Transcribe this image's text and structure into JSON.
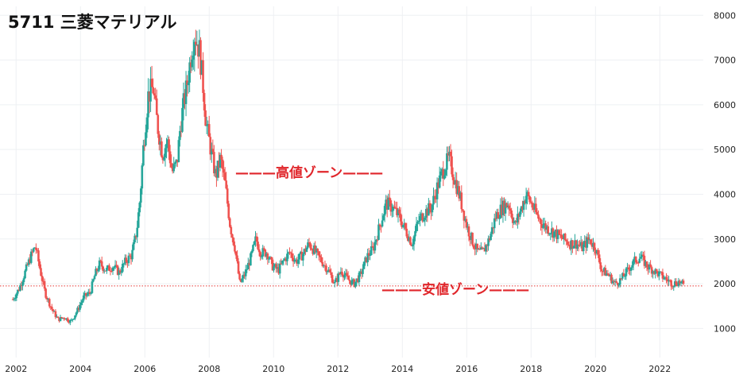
{
  "title": "5711 三菱マテリアル",
  "annotations": {
    "high_zone": "———高値ゾーン———",
    "low_zone": "———安値ゾーン———"
  },
  "colors": {
    "up": "#26a69a",
    "down": "#ef5350",
    "grid": "#eef0f3",
    "reference_line": "#e53935",
    "annotation": "#e0262b"
  },
  "chart_data": {
    "type": "candlestick",
    "title": "5711 三菱マテリアル",
    "xlabel": "",
    "ylabel": "",
    "x_range": [
      2001.5,
      2023.35
    ],
    "ylim": [
      350,
      8200
    ],
    "x_ticks": [
      2002,
      2004,
      2006,
      2008,
      2010,
      2012,
      2014,
      2016,
      2018,
      2020,
      2022
    ],
    "x_tick_labels": [
      "2002",
      "2004",
      "2006",
      "2008",
      "2010",
      "2012",
      "2014",
      "2016",
      "2018",
      "2020",
      "2022"
    ],
    "y_ticks": [
      1000,
      2000,
      3000,
      4000,
      5000,
      6000,
      7000,
      8000
    ],
    "y_tick_labels": [
      "1000",
      "2000",
      "3000",
      "4000",
      "5000",
      "6000",
      "7000",
      "8000"
    ],
    "grid": true,
    "reference_line": 1950,
    "price_path": [
      [
        2001.9,
        1650
      ],
      [
        2002.1,
        1900
      ],
      [
        2002.3,
        2300
      ],
      [
        2002.45,
        2600
      ],
      [
        2002.6,
        2850
      ],
      [
        2002.75,
        2300
      ],
      [
        2002.9,
        1800
      ],
      [
        2003.1,
        1450
      ],
      [
        2003.3,
        1200
      ],
      [
        2003.5,
        1250
      ],
      [
        2003.7,
        1150
      ],
      [
        2003.9,
        1400
      ],
      [
        2004.1,
        1700
      ],
      [
        2004.3,
        1800
      ],
      [
        2004.45,
        2200
      ],
      [
        2004.6,
        2450
      ],
      [
        2004.8,
        2300
      ],
      [
        2005.0,
        2400
      ],
      [
        2005.2,
        2250
      ],
      [
        2005.4,
        2500
      ],
      [
        2005.6,
        2650
      ],
      [
        2005.75,
        3200
      ],
      [
        2005.85,
        3900
      ],
      [
        2005.95,
        5000
      ],
      [
        2006.1,
        6200
      ],
      [
        2006.25,
        6400
      ],
      [
        2006.4,
        5500
      ],
      [
        2006.55,
        4900
      ],
      [
        2006.7,
        5200
      ],
      [
        2006.85,
        4500
      ],
      [
        2007.0,
        4700
      ],
      [
        2007.1,
        5500
      ],
      [
        2007.2,
        6000
      ],
      [
        2007.3,
        6400
      ],
      [
        2007.45,
        7200
      ],
      [
        2007.55,
        7600
      ],
      [
        2007.7,
        7200
      ],
      [
        2007.8,
        6500
      ],
      [
        2007.9,
        5600
      ],
      [
        2008.05,
        5000
      ],
      [
        2008.2,
        4400
      ],
      [
        2008.35,
        4800
      ],
      [
        2008.5,
        4200
      ],
      [
        2008.65,
        3300
      ],
      [
        2008.8,
        2800
      ],
      [
        2008.95,
        2000
      ],
      [
        2009.1,
        2200
      ],
      [
        2009.3,
        2600
      ],
      [
        2009.45,
        3000
      ],
      [
        2009.6,
        2700
      ],
      [
        2009.8,
        2700
      ],
      [
        2009.95,
        2400
      ],
      [
        2010.15,
        2300
      ],
      [
        2010.3,
        2500
      ],
      [
        2010.5,
        2700
      ],
      [
        2010.7,
        2500
      ],
      [
        2010.9,
        2650
      ],
      [
        2011.1,
        2900
      ],
      [
        2011.3,
        2700
      ],
      [
        2011.5,
        2500
      ],
      [
        2011.7,
        2300
      ],
      [
        2011.9,
        2000
      ],
      [
        2012.1,
        2300
      ],
      [
        2012.3,
        2100
      ],
      [
        2012.5,
        2000
      ],
      [
        2012.7,
        2200
      ],
      [
        2012.9,
        2600
      ],
      [
        2013.1,
        2800
      ],
      [
        2013.3,
        3300
      ],
      [
        2013.5,
        3800
      ],
      [
        2013.7,
        3700
      ],
      [
        2013.9,
        3500
      ],
      [
        2014.1,
        3200
      ],
      [
        2014.3,
        2900
      ],
      [
        2014.5,
        3400
      ],
      [
        2014.7,
        3600
      ],
      [
        2014.9,
        3700
      ],
      [
        2015.1,
        4200
      ],
      [
        2015.3,
        4600
      ],
      [
        2015.45,
        4800
      ],
      [
        2015.6,
        4400
      ],
      [
        2015.8,
        3900
      ],
      [
        2016.0,
        3300
      ],
      [
        2016.2,
        2900
      ],
      [
        2016.35,
        2700
      ],
      [
        2016.5,
        2700
      ],
      [
        2016.7,
        3000
      ],
      [
        2016.9,
        3500
      ],
      [
        2017.1,
        3700
      ],
      [
        2017.3,
        3800
      ],
      [
        2017.5,
        3300
      ],
      [
        2017.7,
        3700
      ],
      [
        2017.85,
        4000
      ],
      [
        2018.0,
        3800
      ],
      [
        2018.2,
        3500
      ],
      [
        2018.4,
        3300
      ],
      [
        2018.6,
        3200
      ],
      [
        2018.8,
        3100
      ],
      [
        2019.0,
        3000
      ],
      [
        2019.2,
        2900
      ],
      [
        2019.4,
        2900
      ],
      [
        2019.6,
        2800
      ],
      [
        2019.8,
        3000
      ],
      [
        2020.0,
        2800
      ],
      [
        2020.2,
        2300
      ],
      [
        2020.4,
        2200
      ],
      [
        2020.6,
        2000
      ],
      [
        2020.8,
        2100
      ],
      [
        2021.0,
        2300
      ],
      [
        2021.2,
        2500
      ],
      [
        2021.4,
        2600
      ],
      [
        2021.6,
        2400
      ],
      [
        2021.8,
        2300
      ],
      [
        2022.0,
        2200
      ],
      [
        2022.2,
        2100
      ],
      [
        2022.4,
        2000
      ],
      [
        2022.6,
        2050
      ],
      [
        2022.75,
        1950
      ]
    ]
  }
}
